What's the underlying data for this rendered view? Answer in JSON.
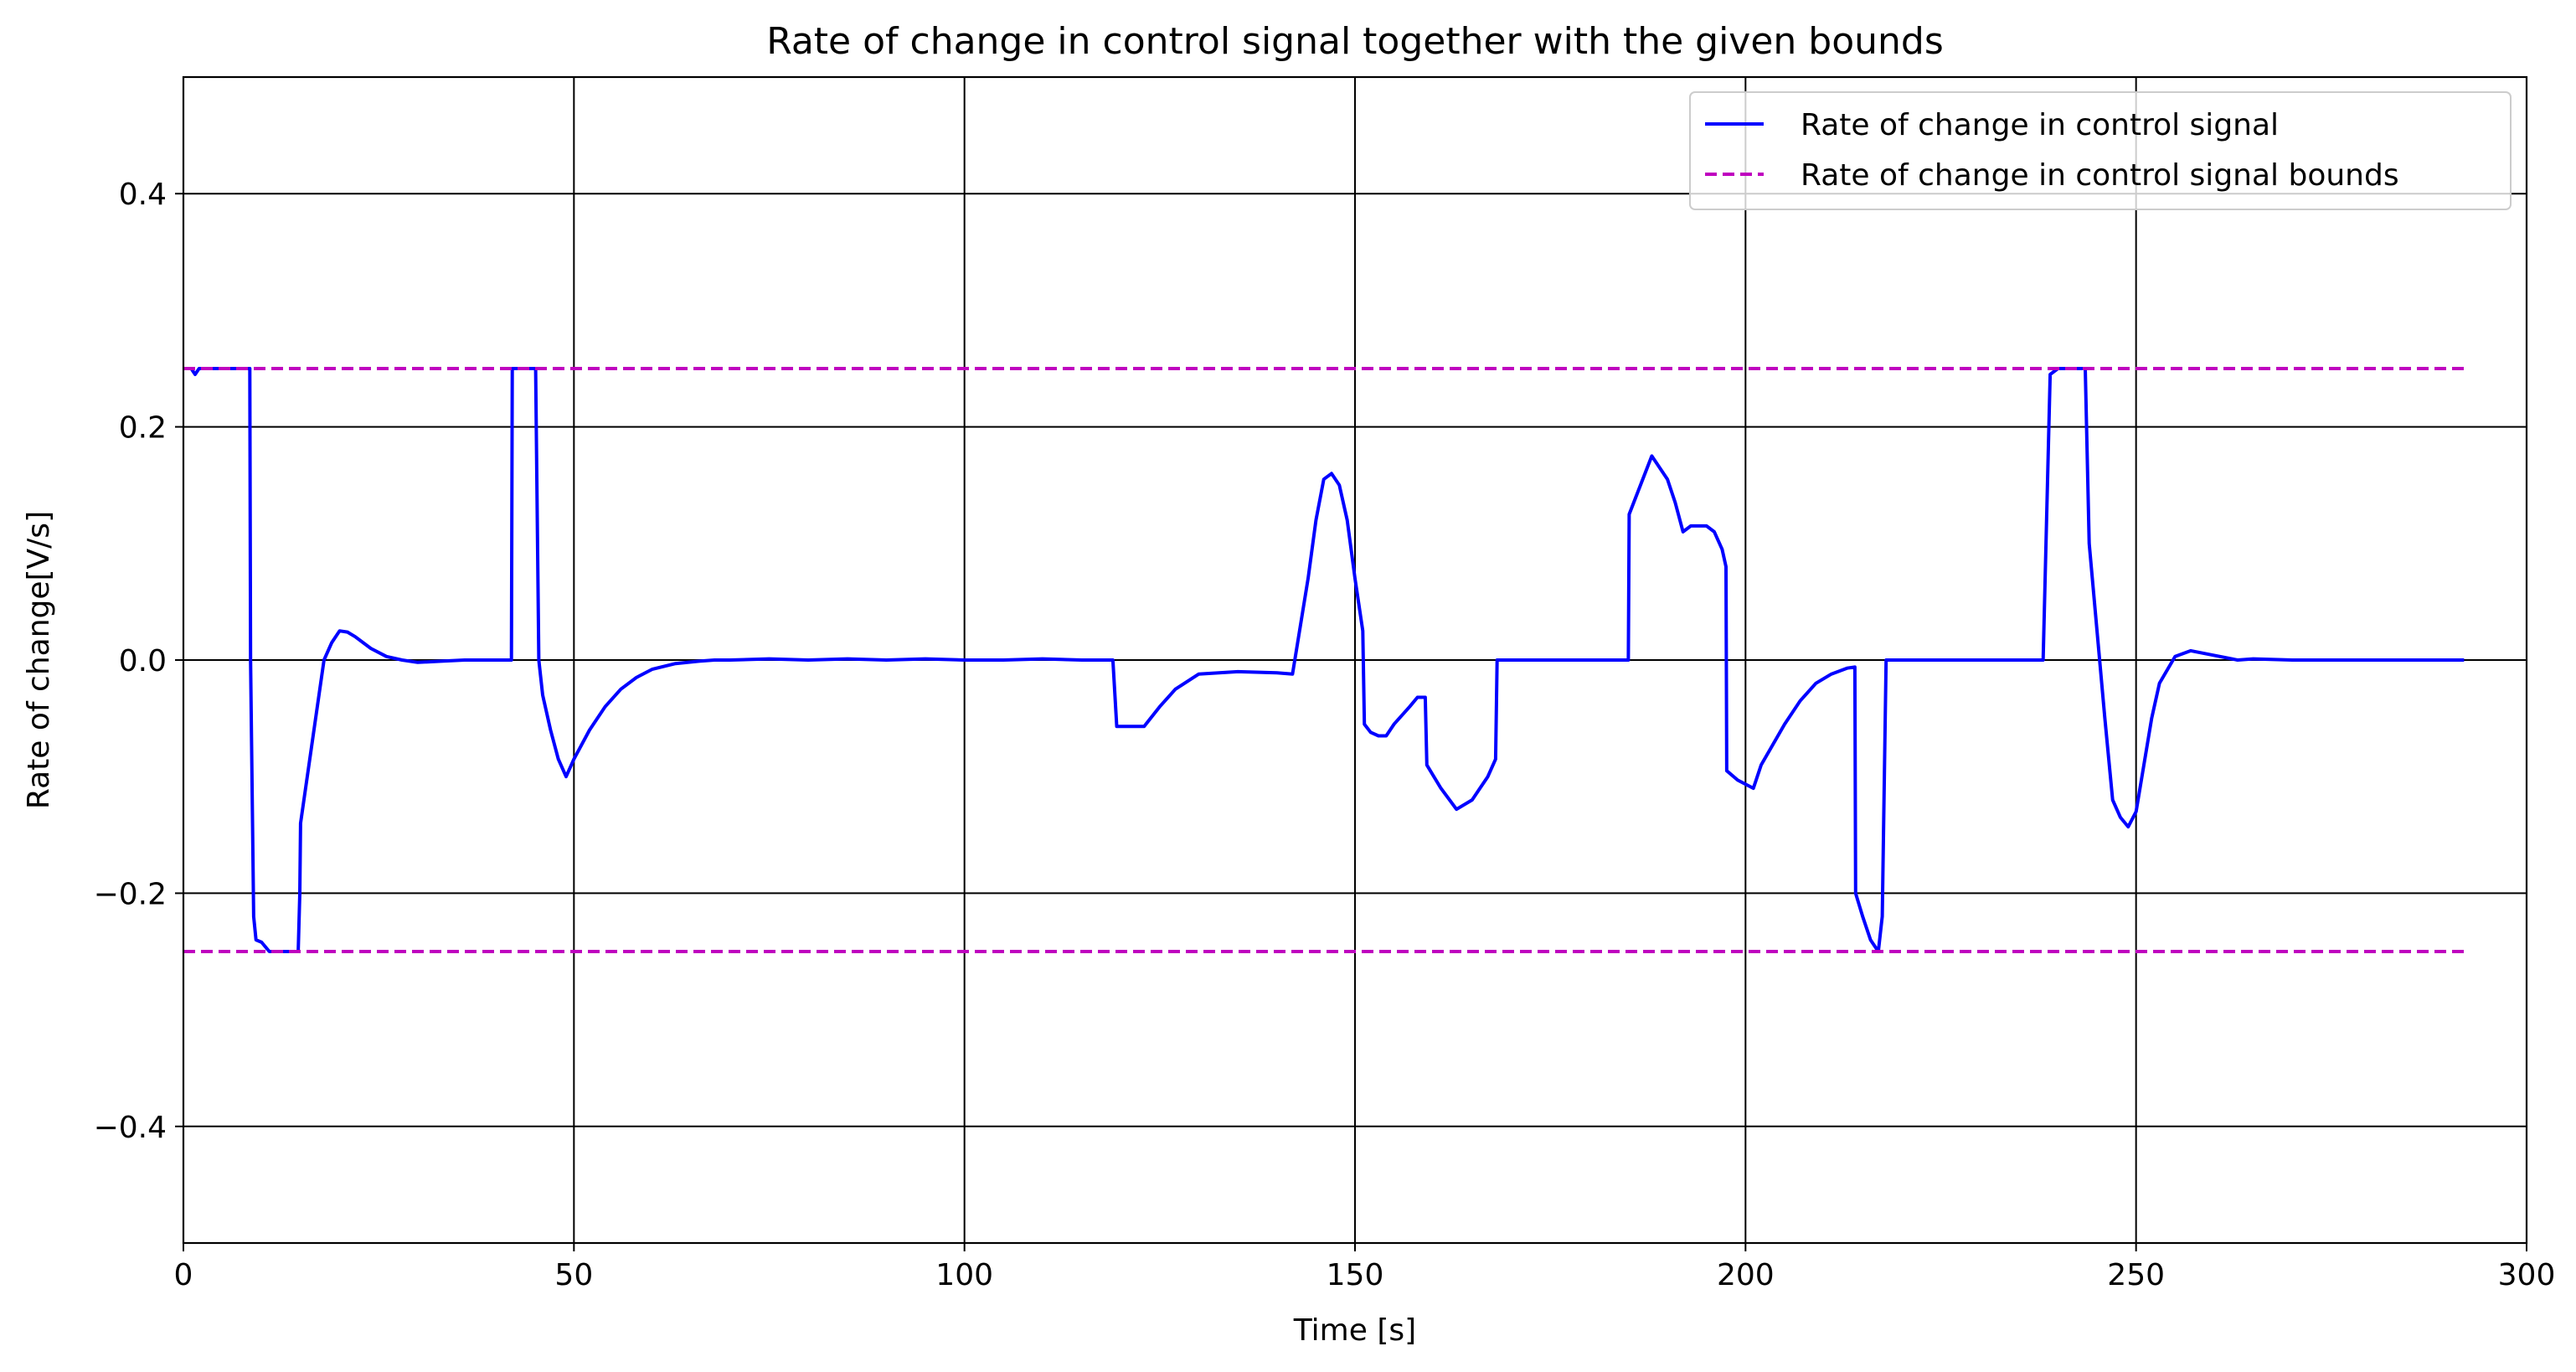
{
  "chart_data": {
    "type": "line",
    "title": "Rate of change in control signal together with the given bounds",
    "xlabel": "Time [s]",
    "ylabel": "Rate of change[V/s]",
    "xlim": [
      0,
      300
    ],
    "ylim": [
      -0.5,
      0.5
    ],
    "xticks": [
      0,
      50,
      100,
      150,
      200,
      250,
      300
    ],
    "xtick_labels": [
      "0",
      "50",
      "100",
      "150",
      "200",
      "250",
      "300"
    ],
    "yticks": [
      -0.4,
      -0.2,
      0.0,
      0.2,
      0.4
    ],
    "ytick_labels": [
      "−0.4",
      "−0.2",
      "0.0",
      "0.2",
      "0.4"
    ],
    "grid": true,
    "legend_position": "top-right",
    "series": [
      {
        "name": "Rate of change in control signal",
        "color": "#0000ff",
        "style": "solid",
        "x": [
          0,
          1,
          1.5,
          2,
          3,
          8.5,
          8.6,
          9,
          9.3,
          10,
          11,
          12,
          14,
          14.7,
          14.9,
          15,
          18,
          19,
          20,
          21,
          22,
          24,
          26,
          28,
          30,
          33,
          36,
          40,
          42,
          42.1,
          45,
          45.1,
          45.5,
          46,
          47,
          48,
          49,
          50,
          52,
          54,
          56,
          58,
          60,
          63,
          66,
          68,
          70,
          75,
          80,
          85,
          90,
          95,
          100,
          105,
          110,
          115,
          118,
          119,
          119.5,
          120,
          121,
          123,
          125,
          127,
          130,
          135,
          140,
          142,
          144,
          145,
          146,
          147,
          148,
          149,
          150,
          151,
          151.2,
          152,
          153,
          154,
          155,
          157,
          158,
          159,
          159.2,
          161,
          163,
          165,
          166,
          167,
          168,
          168.2,
          170,
          175,
          180,
          185,
          185.1,
          188,
          190,
          191,
          192,
          193,
          194,
          195,
          196,
          197,
          197.5,
          197.6,
          199,
          201,
          202,
          205,
          207,
          209,
          211,
          213,
          214,
          214.1,
          215,
          216,
          217,
          217.5,
          218,
          218.2,
          220,
          225,
          230,
          235,
          238,
          238.1,
          239,
          240,
          241,
          243,
          243.5,
          244,
          246,
          247,
          248,
          249,
          250,
          251,
          252,
          253,
          255,
          257,
          260,
          263,
          265,
          270,
          275,
          280,
          285,
          290,
          292
        ],
        "values": [
          0.25,
          0.25,
          0.245,
          0.25,
          0.25,
          0.25,
          0.0,
          -0.22,
          -0.24,
          -0.242,
          -0.25,
          -0.25,
          -0.25,
          -0.25,
          -0.2,
          -0.14,
          0.0,
          0.015,
          0.025,
          0.024,
          0.02,
          0.01,
          0.003,
          0.0,
          -0.002,
          -0.001,
          0.0,
          0.0,
          0.0,
          0.25,
          0.25,
          0.25,
          0.0,
          -0.03,
          -0.06,
          -0.085,
          -0.1,
          -0.085,
          -0.06,
          -0.04,
          -0.025,
          -0.015,
          -0.008,
          -0.003,
          -0.001,
          0.0,
          0.0,
          0.001,
          0.0,
          0.001,
          0.0,
          0.001,
          0.0,
          0.0,
          0.001,
          0.0,
          0.0,
          0.0,
          -0.057,
          -0.057,
          -0.057,
          -0.057,
          -0.04,
          -0.025,
          -0.012,
          -0.01,
          -0.011,
          -0.012,
          0.07,
          0.12,
          0.155,
          0.16,
          0.15,
          0.12,
          0.07,
          0.025,
          -0.055,
          -0.062,
          -0.065,
          -0.065,
          -0.055,
          -0.04,
          -0.032,
          -0.032,
          -0.09,
          -0.11,
          -0.128,
          -0.12,
          -0.11,
          -0.1,
          -0.085,
          0.0,
          0.0,
          0.0,
          0.0,
          0.0,
          0.125,
          0.175,
          0.155,
          0.135,
          0.11,
          0.115,
          0.115,
          0.115,
          0.11,
          0.095,
          0.08,
          -0.095,
          -0.103,
          -0.11,
          -0.09,
          -0.055,
          -0.035,
          -0.02,
          -0.012,
          -0.007,
          -0.006,
          -0.2,
          -0.22,
          -0.24,
          -0.25,
          -0.22,
          0.0,
          0.0,
          0.0,
          0.0,
          0.0,
          0.0,
          0.0,
          0.0,
          0.245,
          0.25,
          0.25,
          0.25,
          0.25,
          0.1,
          -0.05,
          -0.12,
          -0.135,
          -0.143,
          -0.13,
          -0.09,
          -0.05,
          -0.02,
          0.003,
          0.008,
          0.004,
          0.0,
          0.001,
          0.0,
          0.0,
          0.0,
          0.0,
          0.0,
          0.0
        ]
      },
      {
        "name": "Rate of change in control signal bounds",
        "color": "#bf00bf",
        "style": "dashed",
        "x": [
          0,
          292
        ],
        "values": [
          0.25,
          0.25
        ]
      },
      {
        "name": "",
        "color": "#bf00bf",
        "style": "dashed",
        "x": [
          0,
          292
        ],
        "values": [
          -0.25,
          -0.25
        ]
      }
    ]
  }
}
